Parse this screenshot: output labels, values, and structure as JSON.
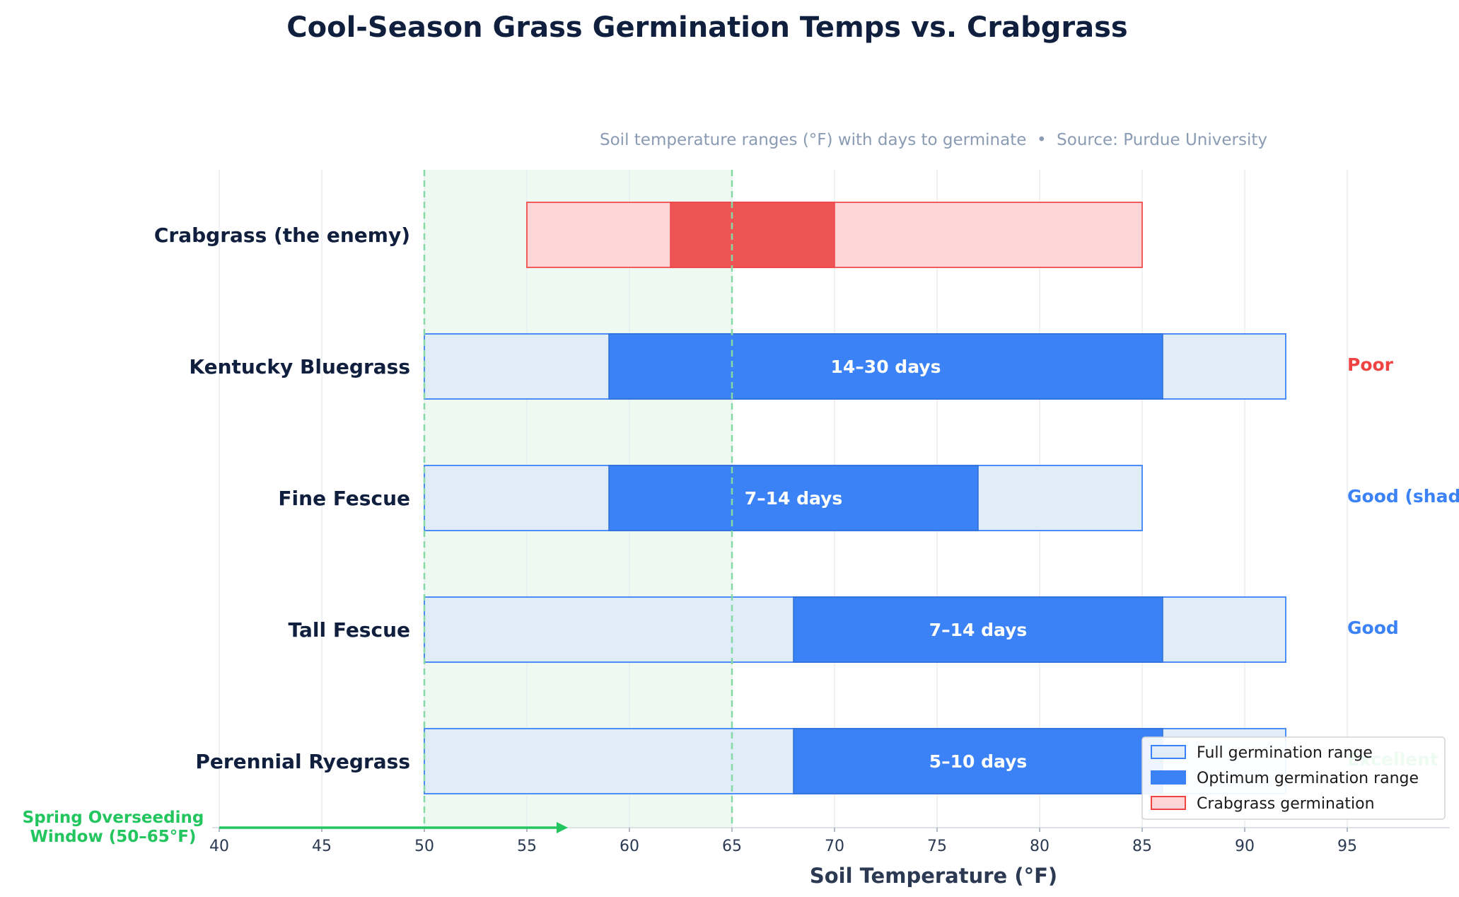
{
  "chart_data": {
    "type": "bar",
    "orientation": "horizontal",
    "title": "Cool-Season Grass Germination Temps vs. Crabgrass",
    "subtitle": "Soil temperature ranges (°F) with days to germinate  •  Source: Purdue University",
    "xlabel": "Soil Temperature (°F)",
    "xlim": [
      30,
      100
    ],
    "xticks": [
      40,
      45,
      50,
      55,
      60,
      65,
      70,
      75,
      80,
      85,
      90,
      95
    ],
    "grid": "vertical",
    "legend_position": "bottom-right",
    "categories": [
      "Crabgrass (the enemy)",
      "Kentucky Bluegrass",
      "Fine Fescue",
      "Tall Fescue",
      "Perennial Ryegrass"
    ],
    "series": [
      {
        "name": "Full germination range",
        "ranges": [
          [
            55,
            85
          ],
          [
            50,
            92
          ],
          [
            50,
            85
          ],
          [
            50,
            92
          ],
          [
            50,
            92
          ]
        ]
      },
      {
        "name": "Optimum germination range",
        "ranges": [
          [
            62,
            70
          ],
          [
            59,
            86
          ],
          [
            59,
            77
          ],
          [
            68,
            86
          ],
          [
            68,
            86
          ]
        ]
      }
    ],
    "days_labels": [
      "",
      "14–30 days",
      "7–14 days",
      "7–14 days",
      "5–10 days"
    ],
    "ratings": [
      "",
      "Poor",
      "Good (shade)",
      "Good",
      "Excellent"
    ],
    "rating_colors": [
      "",
      "#ef4444",
      "#3b82f6",
      "#3b82f6",
      "#22c55e"
    ],
    "legend": [
      "Full germination range",
      "Optimum germination range",
      "Crabgrass germination"
    ],
    "highlight_window": {
      "range": [
        50,
        65
      ],
      "label_line1": "Spring Overseeding",
      "label_line2": "Window (50–65°F)"
    },
    "colors": {
      "grass_full_fill": "#e0ecf8",
      "grass_full_stroke": "#3b82f6",
      "grass_opt_fill": "#3b82f6",
      "crab_full_fill": "#fdd5d7",
      "crab_full_stroke": "#ef4444",
      "crab_opt_fill": "#ef5454",
      "window_fill": "#eefaf1",
      "window_line": "#86d9a4",
      "accent_green": "#22c55e"
    }
  }
}
